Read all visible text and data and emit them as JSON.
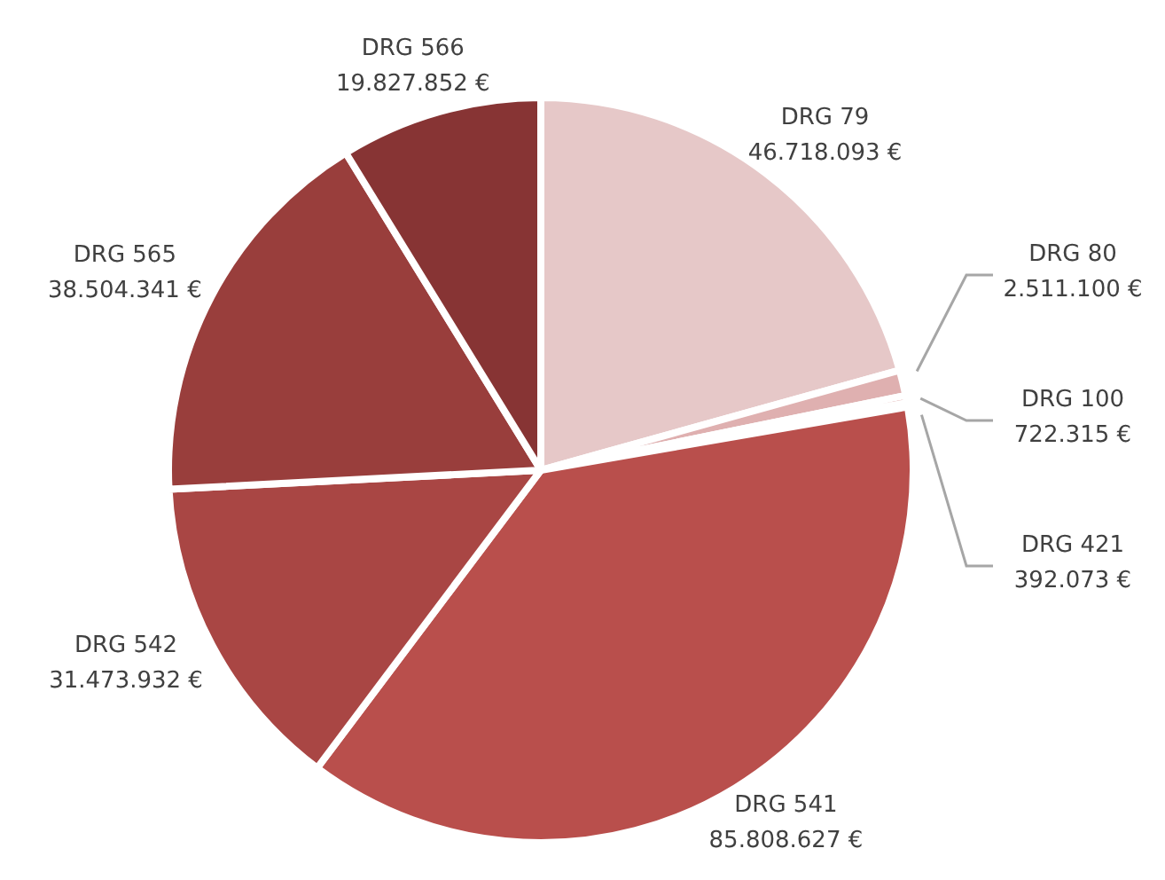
{
  "chart_data": {
    "type": "pie",
    "categories": [
      "DRG 79",
      "DRG 80",
      "DRG 100",
      "DRG 421",
      "DRG 541",
      "DRG 542",
      "DRG 565",
      "DRG 566"
    ],
    "values": [
      46718093,
      2511100,
      722315,
      392073,
      85808627,
      31473932,
      38504341,
      19827852
    ],
    "value_labels": [
      "46.718.093 €",
      "2.511.100 €",
      "722.315 €",
      "392.073 €",
      "85.808.627 €",
      "31.473.932 €",
      "38.504.341 €",
      "19.827.852 €"
    ],
    "colors": [
      "#e6c8c8",
      "#dfb0b0",
      "#d69696",
      "#cc7a7a",
      "#b94f4c",
      "#a94644",
      "#993e3c",
      "#873434"
    ]
  }
}
